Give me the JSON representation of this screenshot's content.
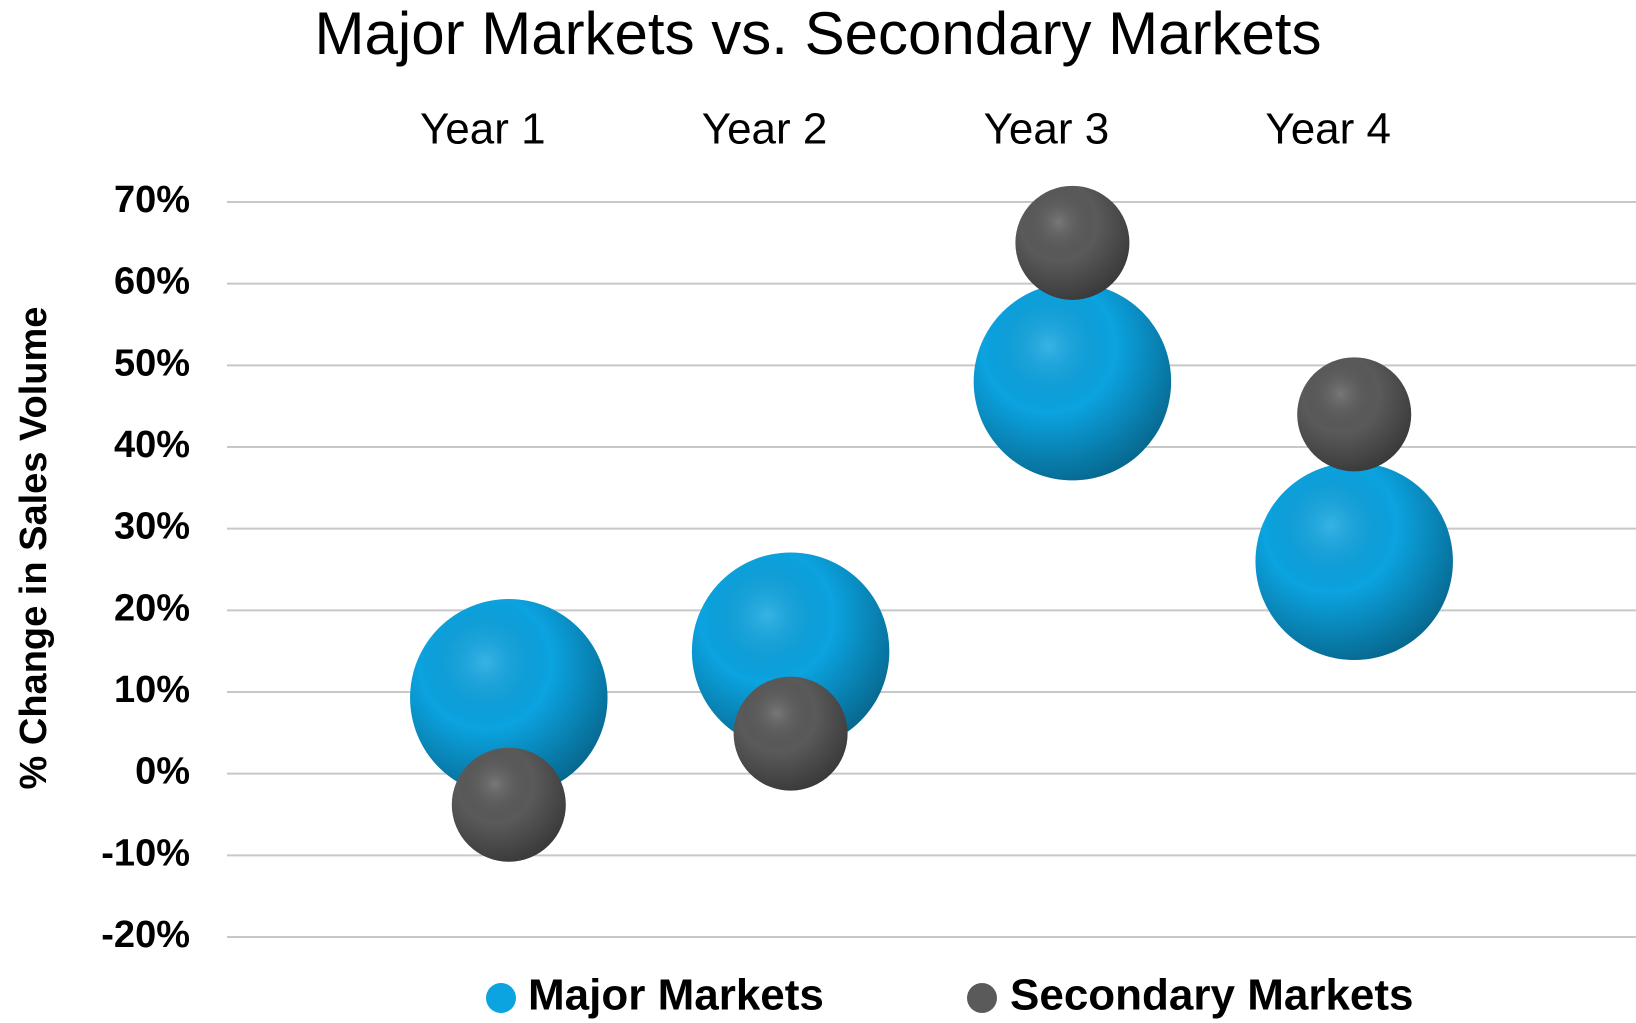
{
  "chart_data": {
    "type": "bubble",
    "title": "Major Markets vs. Secondary Markets",
    "y_label": "% Change in Sales Volume",
    "categories": [
      "Year 1",
      "Year 2",
      "Year 3",
      "Year 4"
    ],
    "x": [
      1,
      2,
      3,
      4
    ],
    "xlim": [
      0,
      5
    ],
    "ylim": [
      -20,
      70
    ],
    "yticks": [
      {
        "value": -20,
        "label": "-20%"
      },
      {
        "value": -10,
        "label": "-10%"
      },
      {
        "value": 0,
        "label": "0%"
      },
      {
        "value": 10,
        "label": "10%"
      },
      {
        "value": 20,
        "label": "20%"
      },
      {
        "value": 30,
        "label": "30%"
      },
      {
        "value": 40,
        "label": "40%"
      },
      {
        "value": 50,
        "label": "50%"
      },
      {
        "value": 60,
        "label": "60%"
      },
      {
        "value": 70,
        "label": "70%"
      }
    ],
    "grid": true,
    "legend": "bottom",
    "series": [
      {
        "name": "Major Markets",
        "color": "#0ba3e0",
        "values": [
          9.3,
          15,
          48,
          26
        ],
        "sizes": [
          3,
          3,
          3,
          3
        ]
      },
      {
        "name": "Secondary Markets",
        "color": "#5a5a5a",
        "values": [
          -3.8,
          4.9,
          65,
          44
        ],
        "sizes": [
          1,
          1,
          1,
          1
        ]
      }
    ]
  }
}
